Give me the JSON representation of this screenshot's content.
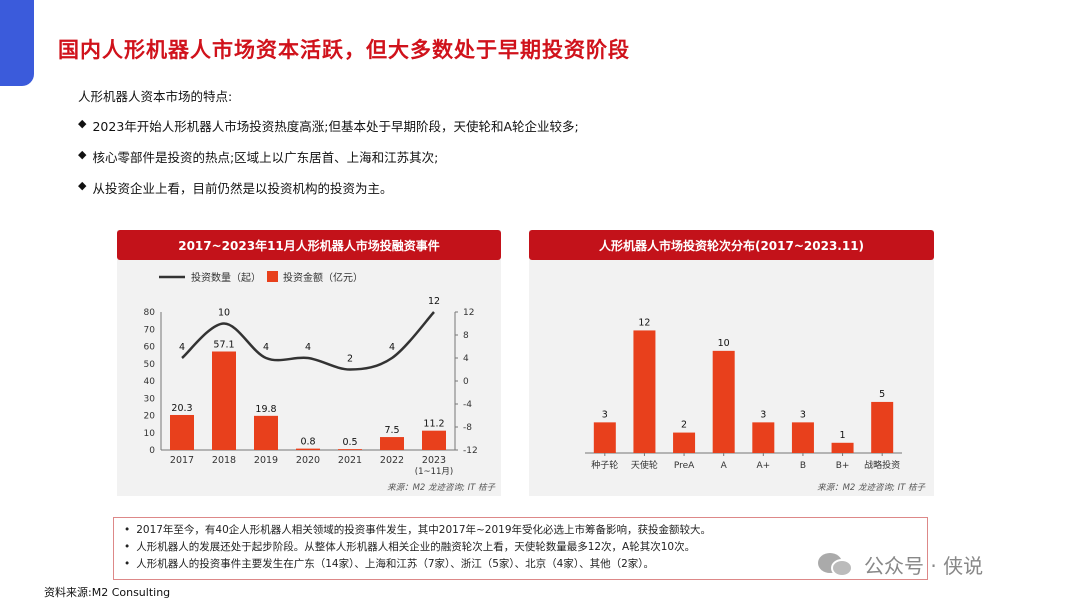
{
  "page": {
    "title": "国内人形机器人市场资本活跃，但大多数处于早期投资阶段",
    "intro": "人形机器人资本市场的特点:",
    "bullets": [
      "2023年开始人形机器人市场投资热度高涨;但基本处于早期阶段，天使轮和A轮企业较多;",
      "核心零部件是投资的热点;区域上以广东居首、上海和江苏其次;",
      "从投资企业上看，目前仍然是以投资机构的投资为主。"
    ],
    "bullet_marker": "◆",
    "notes": [
      "2017年至今，有40企人形机器人相关领域的投资事件发生，其中2017年~2019年受化必选上市筹备影响，获投金额较大。",
      "人形机器人的发展还处于起步阶段。从整体人形机器人相关企业的融资轮次上看，天使轮数量最多12次，A轮其次10次。",
      "人形机器人的投资事件主要发生在广东（14家）、上海和江苏（7家）、浙江（5家）、北京（4家）、其他（2家）。"
    ],
    "note_marker": "•",
    "footer_source": "资料来源:M2 Consulting",
    "watermark": "公众号 · 侠说"
  },
  "chart_data": [
    {
      "type": "bar",
      "title": "2017~2023年11月人形机器人市场投融资事件",
      "categories": [
        "2017",
        "2018",
        "2019",
        "2020",
        "2021",
        "2022",
        "2023"
      ],
      "category_sublabels": [
        "",
        "",
        "",
        "",
        "",
        "",
        "(1~11月)"
      ],
      "series": [
        {
          "name": "投资金额（亿元）",
          "type": "bar",
          "axis": "left",
          "values": [
            20.3,
            57.1,
            19.8,
            0.8,
            0.5,
            7.5,
            11.2
          ],
          "color": "#e8401c"
        },
        {
          "name": "投资数量（起）",
          "type": "line",
          "axis": "right",
          "values": [
            4,
            10,
            4,
            4,
            2,
            4,
            12
          ],
          "color": "#333333"
        }
      ],
      "y_left": {
        "ticks": [
          "0",
          "10",
          "20",
          "30",
          "40",
          "50",
          "60",
          "70",
          "80"
        ],
        "range": [
          0,
          80
        ]
      },
      "y_right": {
        "ticks": [
          "-12",
          "-8",
          "-4",
          "0",
          "4",
          "8",
          "12"
        ],
        "range": [
          -12,
          12
        ]
      },
      "legend_position": "top",
      "grid": false,
      "source": "来源：M2 龙迹咨询; IT 桔子"
    },
    {
      "type": "bar",
      "title": "人形机器人市场投资轮次分布(2017~2023.11)",
      "categories": [
        "种子轮",
        "天使轮",
        "PreA",
        "A",
        "A+",
        "B",
        "B+",
        "战略投资"
      ],
      "values": [
        3,
        12,
        2,
        10,
        3,
        3,
        1,
        5
      ],
      "range": [
        0,
        14
      ],
      "color": "#e8401c",
      "grid": false,
      "source": "来源：M2 龙迹咨询; IT 桔子"
    }
  ]
}
